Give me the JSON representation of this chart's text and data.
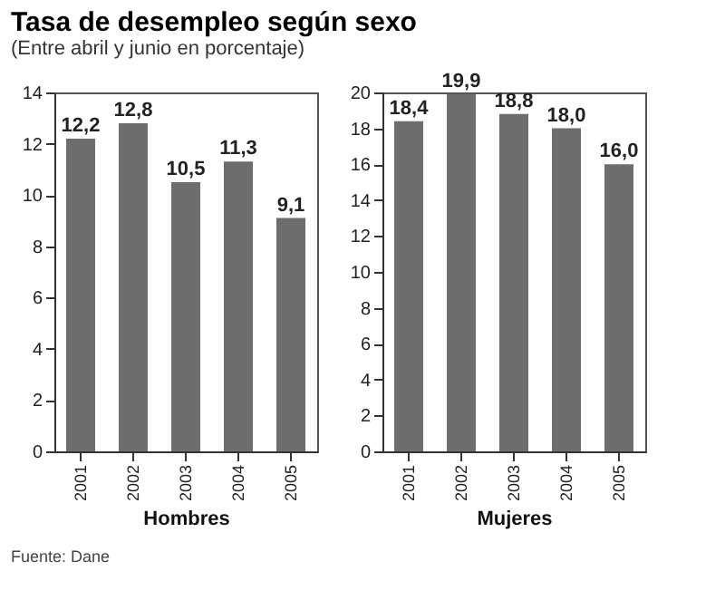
{
  "chart_data": [
    {
      "type": "bar",
      "title": "Tasa de desempleo según sexo",
      "subtitle": "(Entre abril y junio en porcentaje)",
      "xlabel": "Hombres",
      "categories": [
        "2001",
        "2002",
        "2003",
        "2004",
        "2005"
      ],
      "values": [
        12.2,
        12.8,
        10.5,
        11.3,
        9.1
      ],
      "value_labels": [
        "12,2",
        "12,8",
        "10,5",
        "11,3",
        "9,1"
      ],
      "color": "#6d6d6d",
      "ylim": [
        0,
        14
      ],
      "yticks": [
        0,
        2,
        4,
        6,
        8,
        10,
        12,
        14
      ],
      "grid": false,
      "annotations": [
        "Fuente: Dane"
      ]
    },
    {
      "type": "bar",
      "xlabel": "Mujeres",
      "categories": [
        "2001",
        "2002",
        "2003",
        "2004",
        "2005"
      ],
      "values": [
        18.4,
        19.9,
        18.8,
        18.0,
        16.0
      ],
      "value_labels": [
        "18,4",
        "19,9",
        "18,8",
        "18,0",
        "16,0"
      ],
      "color": "#6d6d6d",
      "ylim": [
        0,
        20
      ],
      "yticks": [
        0,
        2,
        4,
        6,
        8,
        10,
        12,
        14,
        16,
        18,
        20
      ],
      "grid": false
    }
  ]
}
